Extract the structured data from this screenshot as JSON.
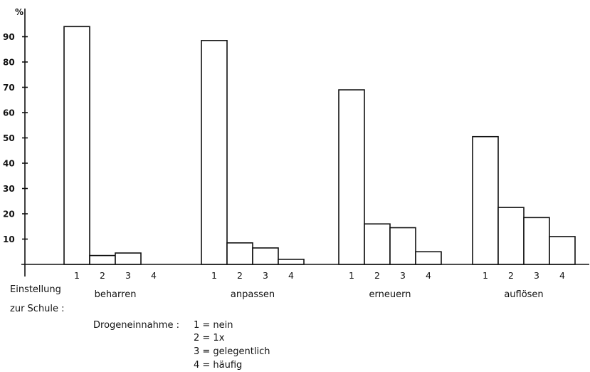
{
  "chart_data": {
    "type": "bar",
    "ylabel": "%",
    "ylim": [
      0,
      100
    ],
    "yticks": [
      10,
      20,
      30,
      40,
      50,
      60,
      70,
      80,
      90
    ],
    "categories": [
      "1",
      "2",
      "3",
      "4"
    ],
    "groups": [
      {
        "name": "beharren",
        "values": [
          94,
          3.5,
          4.5,
          0
        ]
      },
      {
        "name": "anpassen",
        "values": [
          88.5,
          8.5,
          6.5,
          2
        ]
      },
      {
        "name": "erneuern",
        "values": [
          69,
          16,
          14.5,
          5
        ]
      },
      {
        "name": "auflösen",
        "values": [
          50.5,
          22.5,
          18.5,
          11
        ]
      }
    ],
    "group_axis_label": [
      "Einstellung",
      "zur Schule :"
    ],
    "legend": {
      "title": "Drogeneinnahme :",
      "entries": [
        "1 = nein",
        "2 = 1x",
        "3 = gelegentlich",
        "4 = häufig"
      ]
    },
    "grid": false
  }
}
